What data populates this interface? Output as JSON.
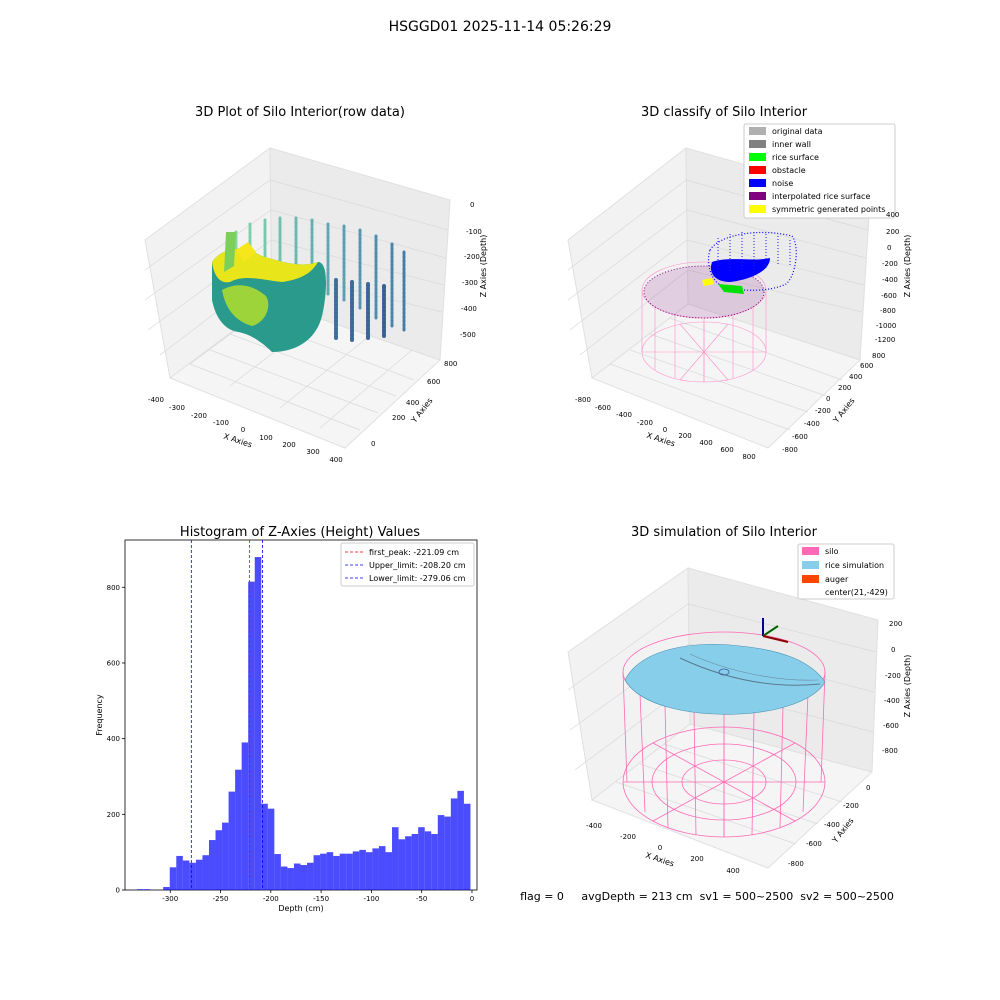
{
  "suptitle": "HSGGD01 2025-11-14 05:26:29",
  "panel1": {
    "title": "3D Plot of Silo Interior(row data)",
    "xlabel": "X Axies",
    "ylabel": "Y Axies",
    "zlabel": "Z Axies (Depth)",
    "xticks": [
      "-400",
      "-300",
      "-200",
      "-100",
      "0",
      "100",
      "200",
      "300",
      "400"
    ],
    "yticks": [
      "0",
      "200",
      "400",
      "600",
      "800"
    ],
    "zticks": [
      "0",
      "-100",
      "-200",
      "-300",
      "-400",
      "-500"
    ]
  },
  "panel2": {
    "title": "3D classify of Silo Interior",
    "xlabel": "X Axies",
    "ylabel": "Y Axies",
    "zlabel": "Z Axies (Depth)",
    "xticks": [
      "-800",
      "-600",
      "-400",
      "-200",
      "0",
      "200",
      "400",
      "600",
      "800"
    ],
    "yticks": [
      "-800",
      "-600",
      "-400",
      "-200",
      "0",
      "200",
      "400",
      "600",
      "800"
    ],
    "zticks": [
      "400",
      "200",
      "0",
      "-200",
      "-400",
      "-600",
      "-800",
      "-1000",
      "-1200"
    ],
    "legend": [
      {
        "label": "original data",
        "color": "#b0b0b0"
      },
      {
        "label": "inner wall",
        "color": "#808080"
      },
      {
        "label": "rice surface",
        "color": "#00ff00"
      },
      {
        "label": "obstacle",
        "color": "#ff0000"
      },
      {
        "label": "noise",
        "color": "#0000ff"
      },
      {
        "label": "interpolated rice surface",
        "color": "#800080"
      },
      {
        "label": "symmetric generated points",
        "color": "#ffff00"
      }
    ]
  },
  "panel4": {
    "title": "3D simulation of Silo Interior",
    "xlabel": "X Axies",
    "ylabel": "Y Axies",
    "zlabel": "Z Axies (Depth)",
    "xticks": [
      "-400",
      "-200",
      "0",
      "200",
      "400"
    ],
    "yticks": [
      "0",
      "-200",
      "-400",
      "-600",
      "-800"
    ],
    "zticks": [
      "200",
      "0",
      "-200",
      "-400",
      "-600",
      "-800"
    ],
    "legend": [
      {
        "label": "silo",
        "color": "#ff69b4"
      },
      {
        "label": "rice simulation",
        "color": "#87ceeb"
      },
      {
        "label": "auger",
        "color": "#ff4500"
      },
      {
        "label": "center(21,-429)",
        "color": "none"
      }
    ],
    "status": "flag = 0     avgDepth = 213 cm  sv1 = 500~2500  sv2 = 500~2500"
  },
  "chart_data": {
    "type": "bar",
    "title": "Histogram of Z-Axies (Height) Values",
    "xlabel": "Depth (cm)",
    "ylabel": "Frequency",
    "xlim": [
      -345,
      5
    ],
    "ylim": [
      0,
      925
    ],
    "xticks": [
      -300,
      -250,
      -200,
      -150,
      -100,
      -50,
      0
    ],
    "yticks": [
      0,
      200,
      400,
      600,
      800
    ],
    "bin_start": -333,
    "bin_width": 6.5,
    "values": [
      2,
      2,
      0,
      0,
      8,
      60,
      90,
      78,
      72,
      80,
      92,
      132,
      158,
      178,
      260,
      318,
      390,
      815,
      880,
      228,
      215,
      95,
      62,
      58,
      70,
      66,
      72,
      92,
      96,
      100,
      90,
      96,
      96,
      102,
      106,
      100,
      110,
      116,
      100,
      166,
      134,
      142,
      148,
      166,
      155,
      148,
      198,
      194,
      242,
      262,
      228
    ],
    "bar_color": "#0000ff",
    "vlines": [
      {
        "x": -221.09,
        "label": "first_peak: -221.09 cm",
        "color": "#ff0000"
      },
      {
        "x": -208.2,
        "label": "Upper_limit: -208.20 cm",
        "color": "#0000ff"
      },
      {
        "x": -279.06,
        "label": "Lower_limit: -279.06 cm",
        "color": "#0000ff"
      }
    ]
  }
}
